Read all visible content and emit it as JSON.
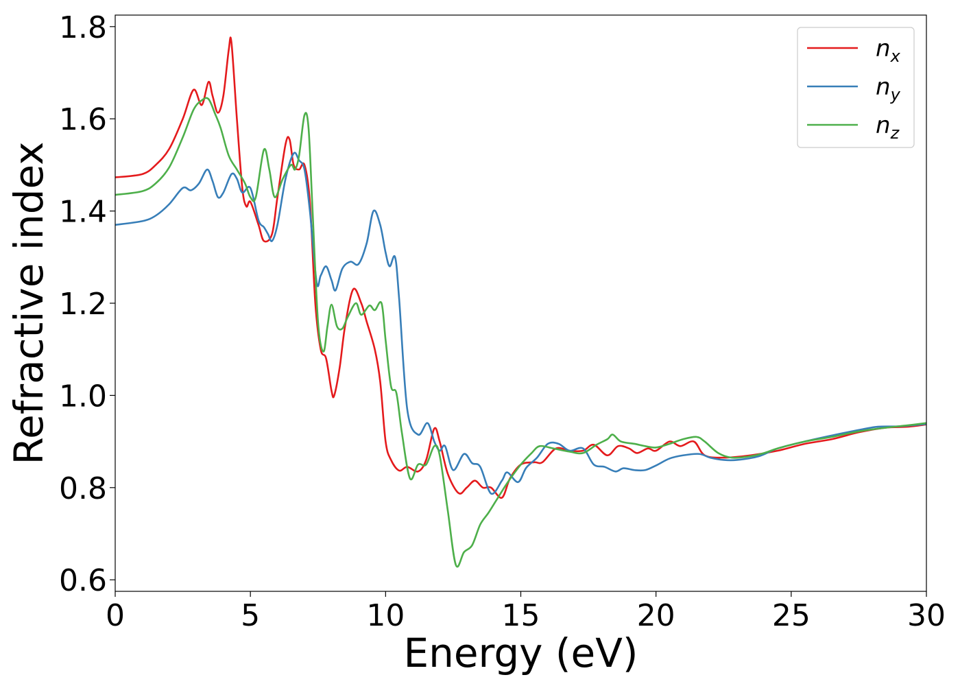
{
  "chart_data": {
    "type": "line",
    "xlabel": "Energy (eV)",
    "ylabel": "Refractive index",
    "xlim": [
      0,
      30
    ],
    "ylim": [
      0.575,
      1.825
    ],
    "xticks": [
      "0",
      "5",
      "10",
      "15",
      "20",
      "25",
      "30"
    ],
    "yticks": [
      "0.6",
      "0.8",
      "1.0",
      "1.2",
      "1.4",
      "1.6",
      "1.8"
    ],
    "grid": false,
    "legend_position": "top-right",
    "series": [
      {
        "name": "n",
        "subscript": "x",
        "color": "#e41a1c",
        "points": [
          [
            0,
            1.473
          ],
          [
            1,
            1.48
          ],
          [
            1.5,
            1.5
          ],
          [
            2,
            1.535
          ],
          [
            2.5,
            1.6
          ],
          [
            2.9,
            1.663
          ],
          [
            3.2,
            1.63
          ],
          [
            3.45,
            1.68
          ],
          [
            3.6,
            1.65
          ],
          [
            3.8,
            1.613
          ],
          [
            4.0,
            1.65
          ],
          [
            4.2,
            1.75
          ],
          [
            4.3,
            1.765
          ],
          [
            4.5,
            1.6
          ],
          [
            4.7,
            1.45
          ],
          [
            4.85,
            1.41
          ],
          [
            5.0,
            1.42
          ],
          [
            5.3,
            1.37
          ],
          [
            5.5,
            1.335
          ],
          [
            5.8,
            1.35
          ],
          [
            6.0,
            1.43
          ],
          [
            6.3,
            1.545
          ],
          [
            6.45,
            1.555
          ],
          [
            6.6,
            1.5
          ],
          [
            6.8,
            1.49
          ],
          [
            7.0,
            1.5
          ],
          [
            7.2,
            1.42
          ],
          [
            7.4,
            1.2
          ],
          [
            7.6,
            1.1
          ],
          [
            7.8,
            1.08
          ],
          [
            8.0,
            1.01
          ],
          [
            8.1,
            1.0
          ],
          [
            8.3,
            1.06
          ],
          [
            8.5,
            1.15
          ],
          [
            8.8,
            1.23
          ],
          [
            9.1,
            1.2
          ],
          [
            9.3,
            1.16
          ],
          [
            9.6,
            1.1
          ],
          [
            9.8,
            1.03
          ],
          [
            10.0,
            0.9
          ],
          [
            10.2,
            0.86
          ],
          [
            10.5,
            0.837
          ],
          [
            10.8,
            0.845
          ],
          [
            11.2,
            0.835
          ],
          [
            11.5,
            0.86
          ],
          [
            11.8,
            0.928
          ],
          [
            12.0,
            0.9
          ],
          [
            12.3,
            0.83
          ],
          [
            12.7,
            0.788
          ],
          [
            13.0,
            0.8
          ],
          [
            13.3,
            0.815
          ],
          [
            13.6,
            0.8
          ],
          [
            13.9,
            0.8
          ],
          [
            14.3,
            0.778
          ],
          [
            14.6,
            0.82
          ],
          [
            15.0,
            0.85
          ],
          [
            15.5,
            0.855
          ],
          [
            15.8,
            0.855
          ],
          [
            16.3,
            0.885
          ],
          [
            16.8,
            0.88
          ],
          [
            17.3,
            0.88
          ],
          [
            17.7,
            0.893
          ],
          [
            18.2,
            0.87
          ],
          [
            18.6,
            0.89
          ],
          [
            19.0,
            0.885
          ],
          [
            19.3,
            0.875
          ],
          [
            19.7,
            0.885
          ],
          [
            20.0,
            0.88
          ],
          [
            20.5,
            0.9
          ],
          [
            20.9,
            0.89
          ],
          [
            21.4,
            0.9
          ],
          [
            21.8,
            0.87
          ],
          [
            22.5,
            0.865
          ],
          [
            23.5,
            0.87
          ],
          [
            24.5,
            0.88
          ],
          [
            25.5,
            0.895
          ],
          [
            26.5,
            0.905
          ],
          [
            27.5,
            0.92
          ],
          [
            28.5,
            0.93
          ],
          [
            29.3,
            0.932
          ],
          [
            30.0,
            0.937
          ]
        ]
      },
      {
        "name": "n",
        "subscript": "y",
        "color": "#377eb8",
        "points": [
          [
            0,
            1.37
          ],
          [
            1,
            1.378
          ],
          [
            1.5,
            1.39
          ],
          [
            2,
            1.415
          ],
          [
            2.5,
            1.45
          ],
          [
            2.8,
            1.445
          ],
          [
            3.1,
            1.46
          ],
          [
            3.4,
            1.49
          ],
          [
            3.6,
            1.465
          ],
          [
            3.8,
            1.43
          ],
          [
            4.0,
            1.44
          ],
          [
            4.3,
            1.48
          ],
          [
            4.5,
            1.47
          ],
          [
            4.7,
            1.44
          ],
          [
            5.0,
            1.45
          ],
          [
            5.3,
            1.38
          ],
          [
            5.5,
            1.365
          ],
          [
            5.65,
            1.35
          ],
          [
            5.8,
            1.335
          ],
          [
            6.0,
            1.37
          ],
          [
            6.3,
            1.47
          ],
          [
            6.6,
            1.525
          ],
          [
            6.8,
            1.51
          ],
          [
            7.0,
            1.49
          ],
          [
            7.2,
            1.4
          ],
          [
            7.45,
            1.245
          ],
          [
            7.6,
            1.26
          ],
          [
            7.8,
            1.28
          ],
          [
            8.0,
            1.25
          ],
          [
            8.15,
            1.228
          ],
          [
            8.4,
            1.275
          ],
          [
            8.7,
            1.29
          ],
          [
            9.0,
            1.285
          ],
          [
            9.3,
            1.33
          ],
          [
            9.55,
            1.4
          ],
          [
            9.8,
            1.37
          ],
          [
            10.0,
            1.31
          ],
          [
            10.15,
            1.28
          ],
          [
            10.35,
            1.3
          ],
          [
            10.5,
            1.21
          ],
          [
            10.8,
            0.97
          ],
          [
            11.2,
            0.915
          ],
          [
            11.55,
            0.94
          ],
          [
            11.8,
            0.9
          ],
          [
            12.0,
            0.88
          ],
          [
            12.2,
            0.89
          ],
          [
            12.5,
            0.838
          ],
          [
            12.9,
            0.873
          ],
          [
            13.2,
            0.853
          ],
          [
            13.5,
            0.845
          ],
          [
            13.9,
            0.787
          ],
          [
            14.3,
            0.815
          ],
          [
            14.5,
            0.833
          ],
          [
            14.9,
            0.812
          ],
          [
            15.2,
            0.843
          ],
          [
            15.6,
            0.865
          ],
          [
            16.0,
            0.895
          ],
          [
            16.4,
            0.895
          ],
          [
            16.8,
            0.88
          ],
          [
            17.3,
            0.885
          ],
          [
            17.7,
            0.85
          ],
          [
            18.1,
            0.845
          ],
          [
            18.5,
            0.835
          ],
          [
            18.8,
            0.842
          ],
          [
            19.2,
            0.838
          ],
          [
            19.6,
            0.838
          ],
          [
            20.0,
            0.848
          ],
          [
            20.5,
            0.863
          ],
          [
            21.0,
            0.87
          ],
          [
            21.6,
            0.873
          ],
          [
            22.0,
            0.865
          ],
          [
            22.5,
            0.86
          ],
          [
            23.0,
            0.86
          ],
          [
            23.8,
            0.868
          ],
          [
            24.5,
            0.885
          ],
          [
            25.5,
            0.9
          ],
          [
            26.5,
            0.913
          ],
          [
            27.5,
            0.925
          ],
          [
            28.2,
            0.932
          ],
          [
            29.0,
            0.933
          ],
          [
            30.0,
            0.938
          ]
        ]
      },
      {
        "name": "n",
        "subscript": "z",
        "color": "#4daf4a",
        "points": [
          [
            0,
            1.435
          ],
          [
            1,
            1.443
          ],
          [
            1.5,
            1.46
          ],
          [
            2,
            1.495
          ],
          [
            2.5,
            1.56
          ],
          [
            2.9,
            1.62
          ],
          [
            3.2,
            1.64
          ],
          [
            3.45,
            1.643
          ],
          [
            3.7,
            1.61
          ],
          [
            3.9,
            1.58
          ],
          [
            4.2,
            1.52
          ],
          [
            4.5,
            1.49
          ],
          [
            4.8,
            1.46
          ],
          [
            5.0,
            1.43
          ],
          [
            5.2,
            1.43
          ],
          [
            5.5,
            1.533
          ],
          [
            5.7,
            1.49
          ],
          [
            5.9,
            1.43
          ],
          [
            6.2,
            1.47
          ],
          [
            6.5,
            1.5
          ],
          [
            6.65,
            1.49
          ],
          [
            6.8,
            1.52
          ],
          [
            7.0,
            1.608
          ],
          [
            7.15,
            1.58
          ],
          [
            7.3,
            1.4
          ],
          [
            7.5,
            1.16
          ],
          [
            7.7,
            1.095
          ],
          [
            7.85,
            1.15
          ],
          [
            8.0,
            1.197
          ],
          [
            8.2,
            1.15
          ],
          [
            8.4,
            1.145
          ],
          [
            8.6,
            1.17
          ],
          [
            8.9,
            1.2
          ],
          [
            9.1,
            1.175
          ],
          [
            9.4,
            1.195
          ],
          [
            9.6,
            1.185
          ],
          [
            9.85,
            1.2
          ],
          [
            10.0,
            1.12
          ],
          [
            10.2,
            1.02
          ],
          [
            10.4,
            1.005
          ],
          [
            10.6,
            0.92
          ],
          [
            10.9,
            0.82
          ],
          [
            11.2,
            0.85
          ],
          [
            11.5,
            0.85
          ],
          [
            11.8,
            0.89
          ],
          [
            12.0,
            0.87
          ],
          [
            12.3,
            0.75
          ],
          [
            12.6,
            0.632
          ],
          [
            12.9,
            0.66
          ],
          [
            13.2,
            0.675
          ],
          [
            13.5,
            0.72
          ],
          [
            13.8,
            0.745
          ],
          [
            14.1,
            0.773
          ],
          [
            14.5,
            0.81
          ],
          [
            15.0,
            0.85
          ],
          [
            15.4,
            0.875
          ],
          [
            15.7,
            0.89
          ],
          [
            16.2,
            0.885
          ],
          [
            16.8,
            0.878
          ],
          [
            17.3,
            0.875
          ],
          [
            17.8,
            0.893
          ],
          [
            18.2,
            0.905
          ],
          [
            18.4,
            0.915
          ],
          [
            18.7,
            0.9
          ],
          [
            19.2,
            0.895
          ],
          [
            19.6,
            0.89
          ],
          [
            20.0,
            0.887
          ],
          [
            20.5,
            0.895
          ],
          [
            21.0,
            0.905
          ],
          [
            21.5,
            0.91
          ],
          [
            21.8,
            0.9
          ],
          [
            22.3,
            0.875
          ],
          [
            22.8,
            0.865
          ],
          [
            23.5,
            0.868
          ],
          [
            24.0,
            0.875
          ],
          [
            24.5,
            0.885
          ],
          [
            25.5,
            0.9
          ],
          [
            26.5,
            0.91
          ],
          [
            27.5,
            0.922
          ],
          [
            28.5,
            0.93
          ],
          [
            29.3,
            0.935
          ],
          [
            30.0,
            0.94
          ]
        ]
      }
    ]
  }
}
